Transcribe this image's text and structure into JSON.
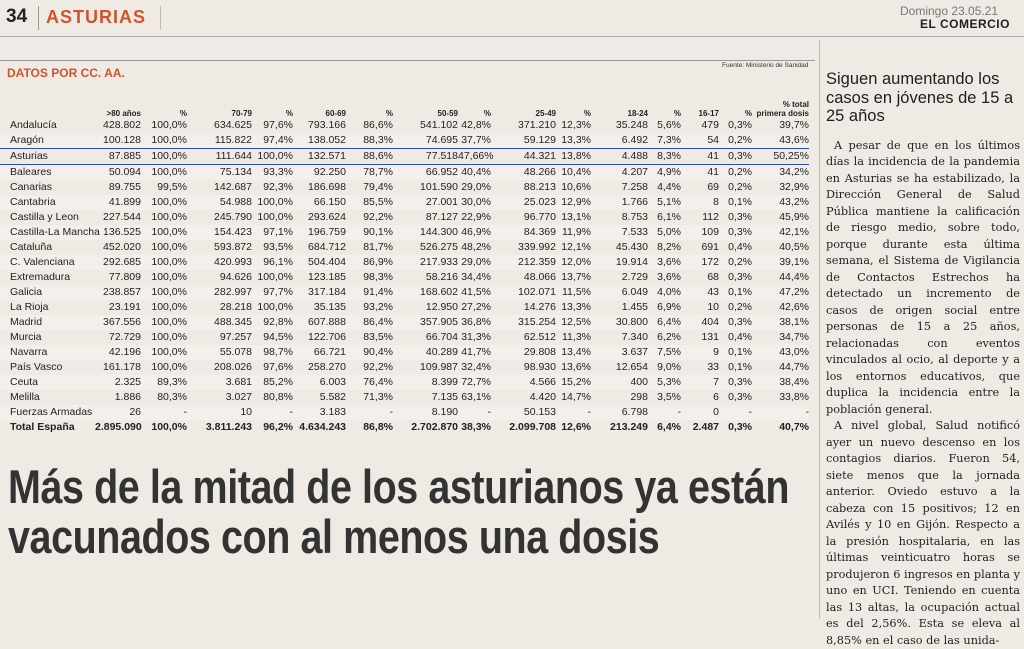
{
  "header": {
    "page": "34",
    "section": "ASTURIAS",
    "date": "Domingo 23.05.21",
    "paper": "EL COMERCIO"
  },
  "table": {
    "title": "DATOS POR CC. AA.",
    "source": "Fuente: Ministerio de Sanidad",
    "columns": [
      "",
      ">80 años",
      "%",
      "70-79",
      "%",
      "60-69",
      "%",
      "50-59",
      "%",
      "25-49",
      "%",
      "18-24",
      "%",
      "16-17",
      "%",
      "% total primera dosis"
    ],
    "rows": [
      [
        "Andalucía",
        "428.802",
        "100,0%",
        "634.625",
        "97,6%",
        "793.166",
        "86,6%",
        "541.102",
        "42,8%",
        "371.210",
        "12,3%",
        "35.248",
        "5,6%",
        "479",
        "0,3%",
        "39,7%"
      ],
      [
        "Aragón",
        "100.128",
        "100,0%",
        "115.822",
        "97,4%",
        "138.052",
        "88,3%",
        "74.695",
        "37,7%",
        "59.129",
        "13,3%",
        "6.492",
        "7,3%",
        "54",
        "0,2%",
        "43,6%"
      ],
      [
        "Asturias",
        "87.885",
        "100,0%",
        "111.644",
        "100,0%",
        "132.571",
        "88,6%",
        "77.518",
        "47,66%",
        "44.321",
        "13,8%",
        "4.488",
        "8,3%",
        "41",
        "0,3%",
        "50,25%"
      ],
      [
        "Baleares",
        "50.094",
        "100,0%",
        "75.134",
        "93,3%",
        "92.250",
        "78,7%",
        "66.952",
        "40,4%",
        "48.266",
        "10,4%",
        "4.207",
        "4,9%",
        "41",
        "0,2%",
        "34,2%"
      ],
      [
        "Canarias",
        "89.755",
        "99,5%",
        "142.687",
        "92,3%",
        "186.698",
        "79,4%",
        "101.590",
        "29,0%",
        "88.213",
        "10,6%",
        "7.258",
        "4,4%",
        "69",
        "0,2%",
        "32,9%"
      ],
      [
        "Cantabria",
        "41.899",
        "100,0%",
        "54.988",
        "100,0%",
        "66.150",
        "85,5%",
        "27.001",
        "30,0%",
        "25.023",
        "12,9%",
        "1.766",
        "5,1%",
        "8",
        "0,1%",
        "43,2%"
      ],
      [
        "Castilla y Leon",
        "227.544",
        "100,0%",
        "245.790",
        "100,0%",
        "293.624",
        "92,2%",
        "87.127",
        "22,9%",
        "96.770",
        "13,1%",
        "8.753",
        "6,1%",
        "112",
        "0,3%",
        "45,9%"
      ],
      [
        "Castilla-La Mancha",
        "136.525",
        "100,0%",
        "154.423",
        "97,1%",
        "196.759",
        "90,1%",
        "144.300",
        "46,9%",
        "84.369",
        "11,9%",
        "7.533",
        "5,0%",
        "109",
        "0,3%",
        "42,1%"
      ],
      [
        "Cataluña",
        "452.020",
        "100,0%",
        "593.872",
        "93,5%",
        "684.712",
        "81,7%",
        "526.275",
        "48,2%",
        "339.992",
        "12,1%",
        "45.430",
        "8,2%",
        "691",
        "0,4%",
        "40,5%"
      ],
      [
        "C. Valenciana",
        "292.685",
        "100,0%",
        "420.993",
        "96,1%",
        "504.404",
        "86,9%",
        "217.933",
        "29,0%",
        "212.359",
        "12,0%",
        "19.914",
        "3,6%",
        "172",
        "0,2%",
        "39,1%"
      ],
      [
        "Extremadura",
        "77.809",
        "100,0%",
        "94.626",
        "100,0%",
        "123.185",
        "98,3%",
        "58.216",
        "34,4%",
        "48.066",
        "13,7%",
        "2.729",
        "3,6%",
        "68",
        "0,3%",
        "44,4%"
      ],
      [
        "Galicia",
        "238.857",
        "100,0%",
        "282.997",
        "97,7%",
        "317.184",
        "91,4%",
        "168.602",
        "41,5%",
        "102.071",
        "11,5%",
        "6.049",
        "4,0%",
        "43",
        "0,1%",
        "47,2%"
      ],
      [
        "La Rioja",
        "23.191",
        "100,0%",
        "28.218",
        "100,0%",
        "35.135",
        "93,2%",
        "12.950",
        "27,2%",
        "14.276",
        "13,3%",
        "1.455",
        "6,9%",
        "10",
        "0,2%",
        "42,6%"
      ],
      [
        "Madrid",
        "367.556",
        "100,0%",
        "488.345",
        "92,8%",
        "607.888",
        "86,4%",
        "357.905",
        "36,8%",
        "315.254",
        "12,5%",
        "30.800",
        "6,4%",
        "404",
        "0,3%",
        "38,1%"
      ],
      [
        "Murcia",
        "72.729",
        "100,0%",
        "97.257",
        "94,5%",
        "122.706",
        "83,5%",
        "66.704",
        "31,3%",
        "62.512",
        "11,3%",
        "7.340",
        "6,2%",
        "131",
        "0,4%",
        "34,7%"
      ],
      [
        "Navarra",
        "42.196",
        "100,0%",
        "55.078",
        "98,7%",
        "66.721",
        "90,4%",
        "40.289",
        "41,7%",
        "29.808",
        "13,4%",
        "3.637",
        "7,5%",
        "9",
        "0,1%",
        "43,0%"
      ],
      [
        "País Vasco",
        "161.178",
        "100,0%",
        "208.026",
        "97,6%",
        "258.270",
        "92,2%",
        "109.987",
        "32,4%",
        "98.930",
        "13,6%",
        "12.654",
        "9,0%",
        "33",
        "0,1%",
        "44,7%"
      ],
      [
        "Ceuta",
        "2.325",
        "89,3%",
        "3.681",
        "85,2%",
        "6.003",
        "76,4%",
        "8.399",
        "72,7%",
        "4.566",
        "15,2%",
        "400",
        "5,3%",
        "7",
        "0,3%",
        "38,4%"
      ],
      [
        "Melilla",
        "1.886",
        "80,3%",
        "3.027",
        "80,8%",
        "5.582",
        "71,3%",
        "7.135",
        "63,1%",
        "4.420",
        "14,7%",
        "298",
        "3,5%",
        "6",
        "0,3%",
        "33,8%"
      ],
      [
        "Fuerzas Armadas",
        "26",
        "-",
        "10",
        "-",
        "3.183",
        "-",
        "8.190",
        "-",
        "50.153",
        "-",
        "6.798",
        "-",
        "0",
        "-",
        "-"
      ],
      [
        "Total España",
        "2.895.090",
        "100,0%",
        "3.811.243",
        "96,2%",
        "4.634.243",
        "86,8%",
        "2.702.870",
        "38,3%",
        "2.099.708",
        "12,6%",
        "213.249",
        "6,4%",
        "2.487",
        "0,3%",
        "40,7%"
      ]
    ]
  },
  "headline": "Más de la mitad de los asturianos ya están vacunados con al menos una dosis",
  "sidebar": {
    "title": "Siguen aumentando los casos en jóvenes de 15 a 25 años",
    "paragraphs": [
      "A pesar de que en los últimos días la incidencia de la pandemia en Asturias se ha estabilizado, la Dirección General de Salud Pública mantiene la calificación de riesgo medio, sobre todo, porque durante esta última semana, el Sistema de Vigilancia de Contactos Estrechos ha detectado un incremento de casos de origen social entre personas de 15 a 25 años, relacionadas con eventos vinculados al ocio, al deporte y a los entornos educativos, que duplica la incidencia entre la población general.",
      "A nivel global, Salud notificó ayer un nuevo descenso en los contagios diarios. Fueron 54, siete menos que la jornada anterior. Oviedo estuvo a la cabeza con 15 positivos; 12 en Avilés y 10 en Gijón. Respecto a la presión hospitalaria, en las últimas veinticuatro horas se produjeron 6 ingresos en planta y uno en UCI. Teniendo en cuenta las 13 altas, la ocupación actual es del 2,56%. Esta se eleva al 8,85% en el caso de las unida-"
    ]
  }
}
